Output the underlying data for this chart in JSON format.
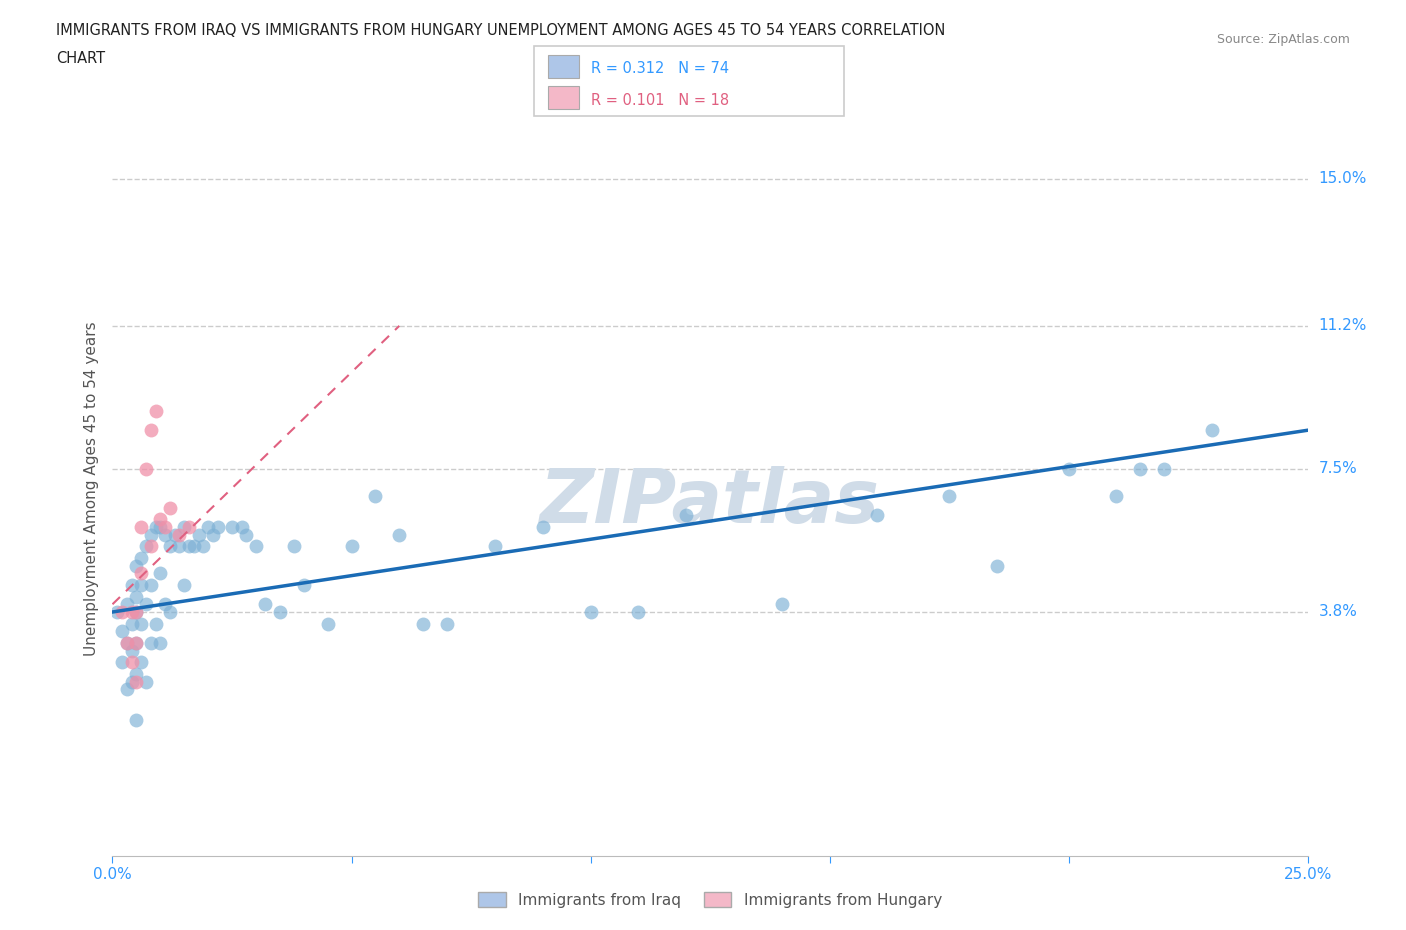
{
  "title_line1": "IMMIGRANTS FROM IRAQ VS IMMIGRANTS FROM HUNGARY UNEMPLOYMENT AMONG AGES 45 TO 54 YEARS CORRELATION",
  "title_line2": "CHART",
  "source": "Source: ZipAtlas.com",
  "ylabel": "Unemployment Among Ages 45 to 54 years",
  "xlim": [
    0.0,
    0.25
  ],
  "ylim": [
    -0.025,
    0.165
  ],
  "ytick_positions": [
    0.038,
    0.075,
    0.112,
    0.15
  ],
  "ytick_labels": [
    "3.8%",
    "7.5%",
    "11.2%",
    "15.0%"
  ],
  "grid_color": "#cccccc",
  "background_color": "#ffffff",
  "watermark": "ZIPatlas",
  "watermark_color": "#d0dce8",
  "legend_color1": "#aec6e8",
  "legend_color2": "#f4b8c8",
  "iraq_color": "#7bafd4",
  "hungary_color": "#f090a8",
  "iraq_line_color": "#1a6bb5",
  "hungary_line_color": "#e06080",
  "iraq_x": [
    0.001,
    0.002,
    0.002,
    0.003,
    0.003,
    0.003,
    0.004,
    0.004,
    0.004,
    0.004,
    0.005,
    0.005,
    0.005,
    0.005,
    0.005,
    0.005,
    0.006,
    0.006,
    0.006,
    0.006,
    0.007,
    0.007,
    0.007,
    0.008,
    0.008,
    0.008,
    0.009,
    0.009,
    0.01,
    0.01,
    0.01,
    0.011,
    0.011,
    0.012,
    0.012,
    0.013,
    0.014,
    0.015,
    0.015,
    0.016,
    0.017,
    0.018,
    0.019,
    0.02,
    0.021,
    0.022,
    0.025,
    0.027,
    0.028,
    0.03,
    0.032,
    0.035,
    0.038,
    0.04,
    0.045,
    0.05,
    0.055,
    0.06,
    0.065,
    0.07,
    0.08,
    0.09,
    0.1,
    0.11,
    0.12,
    0.14,
    0.16,
    0.175,
    0.185,
    0.2,
    0.21,
    0.215,
    0.22,
    0.23
  ],
  "iraq_y": [
    0.038,
    0.033,
    0.025,
    0.04,
    0.03,
    0.018,
    0.045,
    0.035,
    0.028,
    0.02,
    0.05,
    0.042,
    0.038,
    0.03,
    0.022,
    0.01,
    0.052,
    0.045,
    0.035,
    0.025,
    0.055,
    0.04,
    0.02,
    0.058,
    0.045,
    0.03,
    0.06,
    0.035,
    0.06,
    0.048,
    0.03,
    0.058,
    0.04,
    0.055,
    0.038,
    0.058,
    0.055,
    0.06,
    0.045,
    0.055,
    0.055,
    0.058,
    0.055,
    0.06,
    0.058,
    0.06,
    0.06,
    0.06,
    0.058,
    0.055,
    0.04,
    0.038,
    0.055,
    0.045,
    0.035,
    0.055,
    0.068,
    0.058,
    0.035,
    0.035,
    0.055,
    0.06,
    0.038,
    0.038,
    0.063,
    0.04,
    0.063,
    0.068,
    0.05,
    0.075,
    0.068,
    0.075,
    0.075,
    0.085
  ],
  "hungary_x": [
    0.002,
    0.003,
    0.004,
    0.004,
    0.005,
    0.005,
    0.005,
    0.006,
    0.006,
    0.007,
    0.008,
    0.008,
    0.009,
    0.01,
    0.011,
    0.012,
    0.014,
    0.016
  ],
  "hungary_y": [
    0.038,
    0.03,
    0.038,
    0.025,
    0.038,
    0.03,
    0.02,
    0.06,
    0.048,
    0.075,
    0.085,
    0.055,
    0.09,
    0.062,
    0.06,
    0.065,
    0.058,
    0.06
  ],
  "iraq_trend": [
    0.0,
    0.25,
    0.038,
    0.085
  ],
  "hungary_trend": [
    0.0,
    0.06,
    0.04,
    0.112
  ]
}
